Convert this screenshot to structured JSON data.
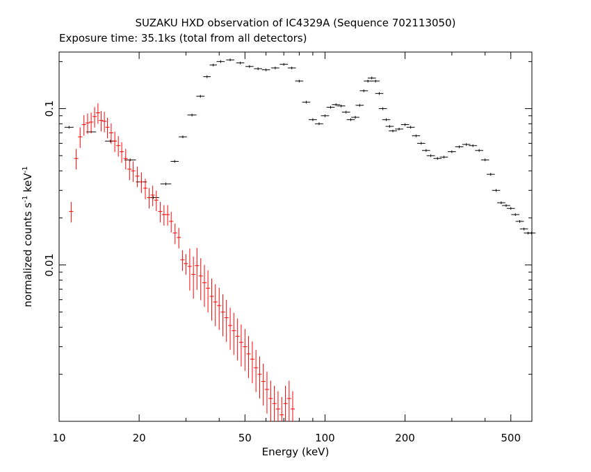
{
  "chart_data": {
    "type": "scatter",
    "title": "SUZAKU HXD observation of IC4329A (Sequence 702113050)",
    "subtitle": "Exposure time: 35.1ks (total from all detectors)",
    "xlabel": "Energy (keV)",
    "ylabel_parts": [
      "normalized counts s",
      "-1",
      " keV",
      "-1"
    ],
    "x_scale": "log",
    "y_scale": "log",
    "xlim": [
      10,
      600
    ],
    "ylim": [
      0.001,
      0.23
    ],
    "x_ticks": [
      {
        "value": 10,
        "label": "10"
      },
      {
        "value": 20,
        "label": "20"
      },
      {
        "value": 50,
        "label": "50"
      },
      {
        "value": 100,
        "label": "100"
      },
      {
        "value": 200,
        "label": "200"
      },
      {
        "value": 500,
        "label": "500"
      }
    ],
    "y_ticks": [
      {
        "value": 0.01,
        "label": "0.01"
      },
      {
        "value": 0.1,
        "label": "0.1"
      }
    ],
    "grid": false,
    "series": [
      {
        "color": "#000000",
        "points": [
          [
            10.9,
            0.076,
            1.0
          ],
          [
            13.2,
            0.071,
            1.1
          ],
          [
            15.6,
            0.062,
            1.2
          ],
          [
            18.5,
            0.047,
            1.3
          ],
          [
            20.4,
            0.034,
            1.2
          ],
          [
            22.6,
            0.027,
            1.3
          ],
          [
            25.2,
            0.033,
            1.2
          ],
          [
            27.2,
            0.046,
            0.9
          ],
          [
            29.2,
            0.066,
            0.9
          ],
          [
            31.6,
            0.091,
            1.0
          ],
          [
            34.0,
            0.12,
            0.9
          ],
          [
            36.0,
            0.16,
            0.8
          ],
          [
            38.0,
            0.19,
            0.8
          ],
          [
            40.5,
            0.2,
            0.9
          ],
          [
            44.0,
            0.205,
            0.9
          ],
          [
            48.0,
            0.196,
            0.9
          ],
          [
            52.0,
            0.186,
            0.9
          ],
          [
            56.0,
            0.18,
            0.9
          ],
          [
            60.0,
            0.177,
            0.9
          ],
          [
            65.0,
            0.182,
            0.9
          ],
          [
            70.0,
            0.192,
            0.9
          ],
          [
            75.0,
            0.182,
            0.9
          ],
          [
            80.0,
            0.15,
            0.9
          ],
          [
            85.0,
            0.11,
            0.9
          ],
          [
            90.0,
            0.085,
            0.9
          ],
          [
            95.0,
            0.08,
            0.9
          ],
          [
            100.0,
            0.09,
            0.9
          ],
          [
            105.0,
            0.102,
            0.9
          ],
          [
            110.0,
            0.106,
            0.9
          ],
          [
            115.0,
            0.104,
            0.9
          ],
          [
            120.0,
            0.095,
            0.9
          ],
          [
            125.0,
            0.085,
            0.9
          ],
          [
            130.0,
            0.088,
            0.9
          ],
          [
            135.0,
            0.105,
            0.9
          ],
          [
            140.0,
            0.13,
            0.9
          ],
          [
            145.0,
            0.15,
            0.9
          ],
          [
            150.0,
            0.157,
            0.9
          ],
          [
            155.0,
            0.15,
            0.9
          ],
          [
            160.0,
            0.125,
            0.9
          ],
          [
            165.0,
            0.1,
            0.9
          ],
          [
            170.0,
            0.085,
            0.9
          ],
          [
            175.0,
            0.077,
            0.9
          ],
          [
            180.0,
            0.072,
            0.9
          ],
          [
            190.0,
            0.074,
            0.9
          ],
          [
            200.0,
            0.079,
            0.9
          ],
          [
            210.0,
            0.076,
            0.9
          ],
          [
            220.0,
            0.067,
            0.9
          ],
          [
            230.0,
            0.06,
            0.9
          ],
          [
            240.0,
            0.054,
            0.9
          ],
          [
            250.0,
            0.05,
            0.9
          ],
          [
            265.0,
            0.048,
            0.9
          ],
          [
            280.0,
            0.049,
            0.9
          ],
          [
            300.0,
            0.053,
            0.9
          ],
          [
            320.0,
            0.057,
            0.9
          ],
          [
            340.0,
            0.059,
            0.9
          ],
          [
            360.0,
            0.058,
            0.9
          ],
          [
            380.0,
            0.054,
            0.9
          ],
          [
            400.0,
            0.047,
            0.9
          ],
          [
            420.0,
            0.038,
            0.9
          ],
          [
            440.0,
            0.03,
            0.9
          ],
          [
            460.0,
            0.025,
            0.9
          ],
          [
            480.0,
            0.024,
            0.9
          ],
          [
            500.0,
            0.023,
            0.9
          ],
          [
            520.0,
            0.021,
            0.9
          ],
          [
            540.0,
            0.019,
            0.9
          ],
          [
            560.0,
            0.017,
            0.9
          ],
          [
            580.0,
            0.016,
            0.9
          ],
          [
            598.0,
            0.016,
            0.9
          ]
        ]
      },
      {
        "color": "#ff0000",
        "points": [
          [
            11.1,
            0.022,
            1.0
          ],
          [
            11.6,
            0.048,
            1.0
          ],
          [
            12.0,
            0.066,
            1.0
          ],
          [
            12.4,
            0.079,
            1.0
          ],
          [
            12.8,
            0.081,
            1.0
          ],
          [
            13.2,
            0.082,
            1.0
          ],
          [
            13.6,
            0.089,
            1.0
          ],
          [
            14.0,
            0.094,
            1.0
          ],
          [
            14.4,
            0.084,
            1.0
          ],
          [
            14.8,
            0.083,
            1.0
          ],
          [
            15.2,
            0.076,
            1.0
          ],
          [
            15.7,
            0.07,
            1.0
          ],
          [
            16.2,
            0.062,
            1.0
          ],
          [
            16.7,
            0.058,
            1.0
          ],
          [
            17.2,
            0.053,
            1.0
          ],
          [
            17.8,
            0.048,
            1.0
          ],
          [
            18.4,
            0.041,
            1.0
          ],
          [
            19.0,
            0.04,
            1.0
          ],
          [
            19.7,
            0.037,
            1.0
          ],
          [
            20.4,
            0.034,
            1.0
          ],
          [
            21.1,
            0.031,
            1.0
          ],
          [
            21.8,
            0.027,
            1.0
          ],
          [
            22.5,
            0.028,
            1.0
          ],
          [
            23.2,
            0.026,
            1.0
          ],
          [
            24.0,
            0.022,
            1.0
          ],
          [
            24.8,
            0.021,
            1.0
          ],
          [
            25.6,
            0.021,
            1.0
          ],
          [
            26.4,
            0.019,
            1.0
          ],
          [
            27.3,
            0.016,
            1.0
          ],
          [
            28.2,
            0.015,
            1.0
          ],
          [
            29.1,
            0.0108,
            1.0
          ],
          [
            30.0,
            0.0102,
            1.0
          ],
          [
            31.0,
            0.0098,
            1.0
          ],
          [
            32.0,
            0.0087,
            1.0
          ],
          [
            33.0,
            0.0099,
            1.0
          ],
          [
            34.1,
            0.0085,
            1.0
          ],
          [
            35.2,
            0.0077,
            1.0
          ],
          [
            36.3,
            0.0071,
            1.0
          ],
          [
            37.5,
            0.0063,
            1.0
          ],
          [
            38.7,
            0.0058,
            1.0
          ],
          [
            40.0,
            0.0055,
            1.0
          ],
          [
            41.3,
            0.005,
            1.0
          ],
          [
            42.6,
            0.0046,
            1.0
          ],
          [
            44.0,
            0.0041,
            1.0
          ],
          [
            45.4,
            0.0038,
            1.0
          ],
          [
            46.9,
            0.0035,
            1.0
          ],
          [
            48.4,
            0.0032,
            1.0
          ],
          [
            50.0,
            0.003,
            1.0
          ],
          [
            51.6,
            0.0027,
            1.0
          ],
          [
            53.3,
            0.0025,
            1.0
          ],
          [
            55.0,
            0.0022,
            1.0
          ],
          [
            56.8,
            0.002,
            1.0
          ],
          [
            58.6,
            0.0018,
            1.0
          ],
          [
            60.5,
            0.0016,
            1.0
          ],
          [
            62.5,
            0.0014,
            1.0
          ],
          [
            64.5,
            0.0013,
            1.0
          ],
          [
            66.6,
            0.0012,
            1.0
          ],
          [
            68.8,
            0.0011,
            1.0
          ],
          [
            71.0,
            0.0013,
            1.0
          ],
          [
            73.3,
            0.0014,
            1.0
          ],
          [
            75.6,
            0.0012,
            1.0
          ]
        ]
      }
    ]
  }
}
